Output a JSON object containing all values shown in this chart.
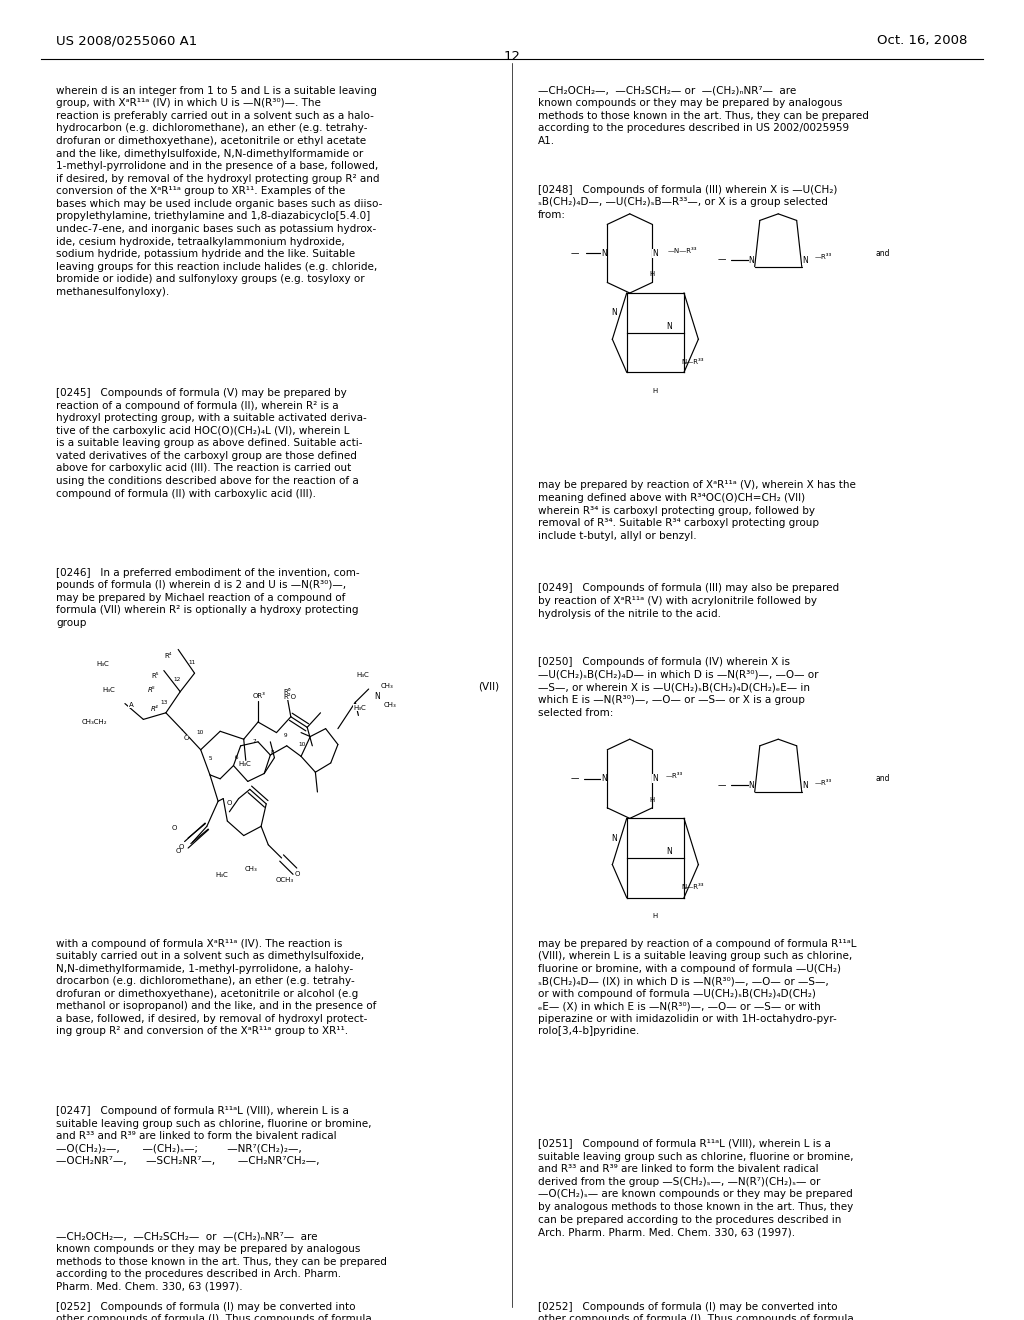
{
  "page_header_left": "US 2008/0255060 A1",
  "page_header_right": "Oct. 16, 2008",
  "page_number": "12",
  "background_color": "#ffffff",
  "body_fontsize": 7.5,
  "header_fontsize": 9.5
}
